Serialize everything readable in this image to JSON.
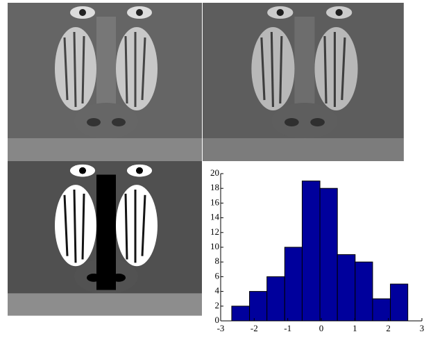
{
  "chart_data": {
    "type": "histogram",
    "bins": [
      -2.67,
      -2.14,
      -1.62,
      -1.09,
      -0.57,
      -0.04,
      0.48,
      1.01,
      1.53,
      2.06,
      2.58
    ],
    "values": [
      2,
      4,
      6,
      10,
      19,
      18,
      9,
      8,
      3,
      5
    ],
    "color": "#00009c",
    "xlim": [
      -3,
      3
    ],
    "xticks": [
      -3,
      -2,
      -1,
      0,
      1,
      2,
      3
    ],
    "ylim": [
      0,
      20
    ],
    "yticks": [
      0,
      2,
      4,
      6,
      8,
      10,
      12,
      14,
      16,
      18,
      20
    ]
  }
}
